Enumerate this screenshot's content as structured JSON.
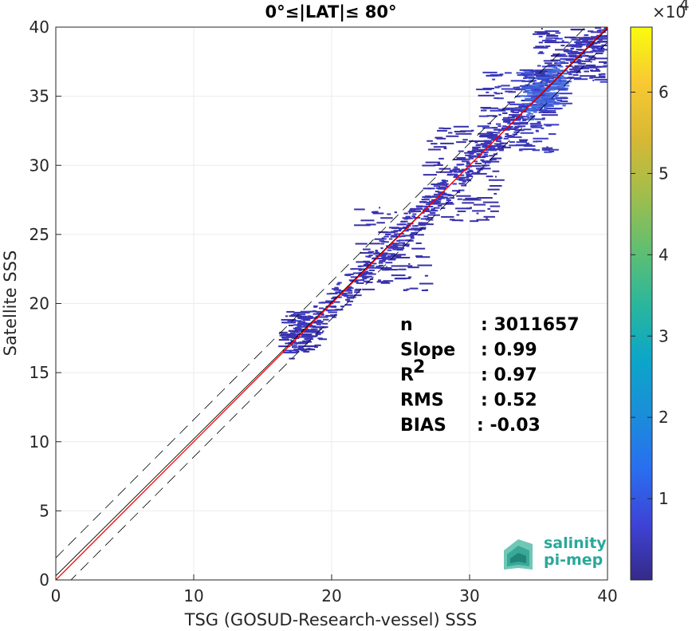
{
  "chart_data": {
    "type": "heatmap",
    "title": "0°≤|LAT|≤ 80°",
    "xlabel": "TSG (GOSUD-Research-vessel) SSS",
    "ylabel": "Satellite SSS",
    "xlim": [
      0,
      40
    ],
    "ylim": [
      0,
      40
    ],
    "xticks": [
      "0",
      "10",
      "20",
      "30",
      "40"
    ],
    "yticks": [
      "0",
      "5",
      "10",
      "15",
      "20",
      "25",
      "30",
      "35",
      "40"
    ],
    "grid": true,
    "colorbar": {
      "range": [
        0,
        68000
      ],
      "ticks": [
        "1",
        "2",
        "3",
        "4",
        "5",
        "6"
      ],
      "exponent": "×10",
      "exponent_power": "4",
      "colormap": "parula"
    },
    "reference_lines": {
      "one_to_one": {
        "slope": 1,
        "intercept": 0,
        "color": "#ff0000"
      },
      "fit": {
        "slope": 0.99,
        "intercept": 0.3,
        "color": "#000000"
      },
      "offsets_dashed": [
        -1.1,
        1.6
      ]
    },
    "density_regions": [
      {
        "x": [
          16.5,
          19.5
        ],
        "y": [
          16.5,
          19.5
        ],
        "level": 0.12
      },
      {
        "x": [
          22,
          27
        ],
        "y": [
          21,
          27
        ],
        "level": 0.08
      },
      {
        "x": [
          27,
          32
        ],
        "y": [
          26,
          33
        ],
        "level": 0.1
      },
      {
        "x": [
          31,
          36
        ],
        "y": [
          31,
          37
        ],
        "level": 0.18
      },
      {
        "x": [
          34,
          37
        ],
        "y": [
          34,
          37
        ],
        "level": 0.35
      },
      {
        "x": [
          35,
          40
        ],
        "y": [
          36,
          40
        ],
        "level": 0.14
      }
    ],
    "stats": [
      {
        "label": "n",
        "sup": "",
        "value": ": 3011657"
      },
      {
        "label": "Slope",
        "sup": "",
        "value": ": 0.99"
      },
      {
        "label": "R",
        "sup": "2",
        "value": ": 0.97"
      },
      {
        "label": "RMS",
        "sup": "",
        "value": ": 0.52"
      },
      {
        "label": "BIAS",
        "sup": "",
        "value": ": -0.03"
      }
    ]
  },
  "logo": {
    "line1": "salinity",
    "line2": "pi-mep"
  }
}
